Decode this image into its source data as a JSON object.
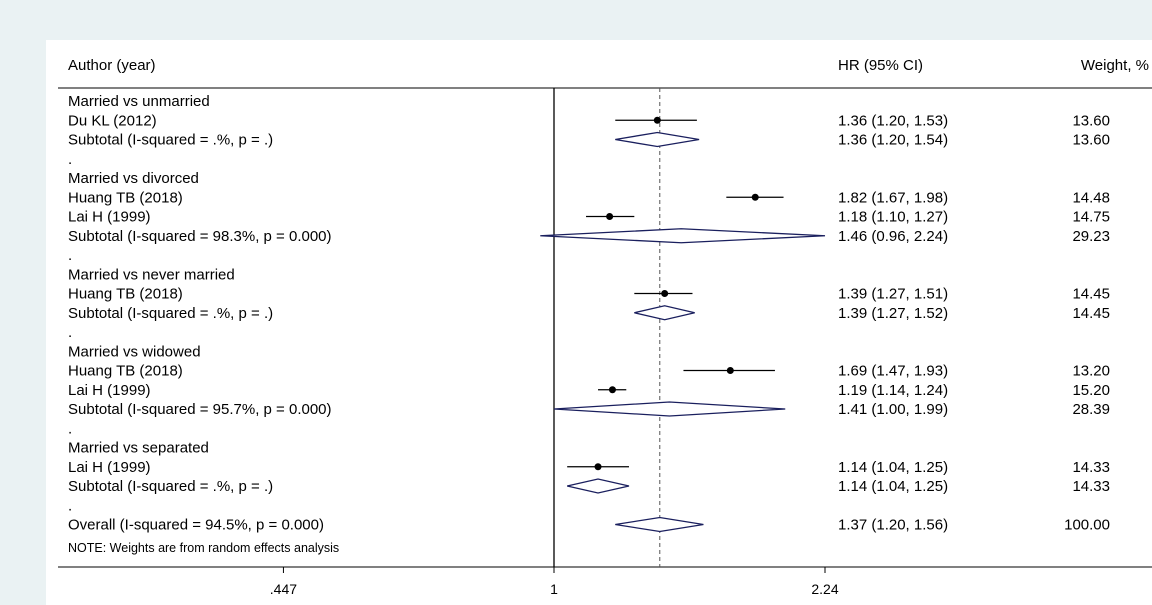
{
  "chart_data": {
    "type": "forest",
    "scale": "log",
    "axis_ticks": [
      {
        "value": 0.447,
        "label": ".447"
      },
      {
        "value": 1,
        "label": "1"
      },
      {
        "value": 2.24,
        "label": "2.24"
      }
    ],
    "null_line": 1,
    "overall_line": 1.37,
    "headers": {
      "study": "Author (year)",
      "hr": "HR (95% CI)",
      "weight": "Weight, %"
    },
    "rows": [
      {
        "kind": "group",
        "label": "Married vs unmarried"
      },
      {
        "kind": "study",
        "label": "Du KL (2012)",
        "hr": 1.36,
        "lo": 1.2,
        "hi": 1.53,
        "ci_text": "1.36 (1.20, 1.53)",
        "weight": "13.60"
      },
      {
        "kind": "subtotal",
        "label": "Subtotal  (I-squared = .%, p = .)",
        "hr": 1.36,
        "lo": 1.2,
        "hi": 1.54,
        "ci_text": "1.36 (1.20, 1.54)",
        "weight": "13.60"
      },
      {
        "kind": "spacer",
        "label": "."
      },
      {
        "kind": "group",
        "label": "Married vs divorced"
      },
      {
        "kind": "study",
        "label": "Huang TB (2018)",
        "hr": 1.82,
        "lo": 1.67,
        "hi": 1.98,
        "ci_text": "1.82 (1.67, 1.98)",
        "weight": "14.48"
      },
      {
        "kind": "study",
        "label": "Lai H (1999)",
        "hr": 1.18,
        "lo": 1.1,
        "hi": 1.27,
        "ci_text": "1.18 (1.10, 1.27)",
        "weight": "14.75"
      },
      {
        "kind": "subtotal",
        "label": "Subtotal  (I-squared = 98.3%, p = 0.000)",
        "hr": 1.46,
        "lo": 0.96,
        "hi": 2.24,
        "ci_text": "1.46 (0.96, 2.24)",
        "weight": "29.23"
      },
      {
        "kind": "spacer",
        "label": "."
      },
      {
        "kind": "group",
        "label": "Married vs never married"
      },
      {
        "kind": "study",
        "label": "Huang TB (2018)",
        "hr": 1.39,
        "lo": 1.27,
        "hi": 1.51,
        "ci_text": "1.39 (1.27, 1.51)",
        "weight": "14.45"
      },
      {
        "kind": "subtotal",
        "label": "Subtotal  (I-squared = .%, p = .)",
        "hr": 1.39,
        "lo": 1.27,
        "hi": 1.52,
        "ci_text": "1.39 (1.27, 1.52)",
        "weight": "14.45"
      },
      {
        "kind": "spacer",
        "label": "."
      },
      {
        "kind": "group",
        "label": "Married vs widowed"
      },
      {
        "kind": "study",
        "label": "Huang TB (2018)",
        "hr": 1.69,
        "lo": 1.47,
        "hi": 1.93,
        "ci_text": "1.69 (1.47, 1.93)",
        "weight": "13.20"
      },
      {
        "kind": "study",
        "label": "Lai H (1999)",
        "hr": 1.19,
        "lo": 1.14,
        "hi": 1.24,
        "ci_text": "1.19 (1.14, 1.24)",
        "weight": "15.20"
      },
      {
        "kind": "subtotal",
        "label": "Subtotal  (I-squared = 95.7%, p = 0.000)",
        "hr": 1.41,
        "lo": 1.0,
        "hi": 1.99,
        "ci_text": "1.41 (1.00, 1.99)",
        "weight": "28.39"
      },
      {
        "kind": "spacer",
        "label": "."
      },
      {
        "kind": "group",
        "label": "Married vs separated"
      },
      {
        "kind": "study",
        "label": "Lai H (1999)",
        "hr": 1.14,
        "lo": 1.04,
        "hi": 1.25,
        "ci_text": "1.14 (1.04, 1.25)",
        "weight": "14.33"
      },
      {
        "kind": "subtotal",
        "label": "Subtotal  (I-squared = .%, p = .)",
        "hr": 1.14,
        "lo": 1.04,
        "hi": 1.25,
        "ci_text": "1.14 (1.04, 1.25)",
        "weight": "14.33"
      },
      {
        "kind": "spacer",
        "label": "."
      },
      {
        "kind": "overall",
        "label": "Overall  (I-squared = 94.5%, p = 0.000)",
        "hr": 1.37,
        "lo": 1.2,
        "hi": 1.56,
        "ci_text": "1.37 (1.20, 1.56)",
        "weight": "100.00"
      }
    ],
    "note": "NOTE: Weights are from random effects analysis",
    "colors": {
      "background": "#eaf2f3",
      "plot": "#ffffff",
      "diamond": "#1a1f5e",
      "ink": "#000000"
    }
  }
}
